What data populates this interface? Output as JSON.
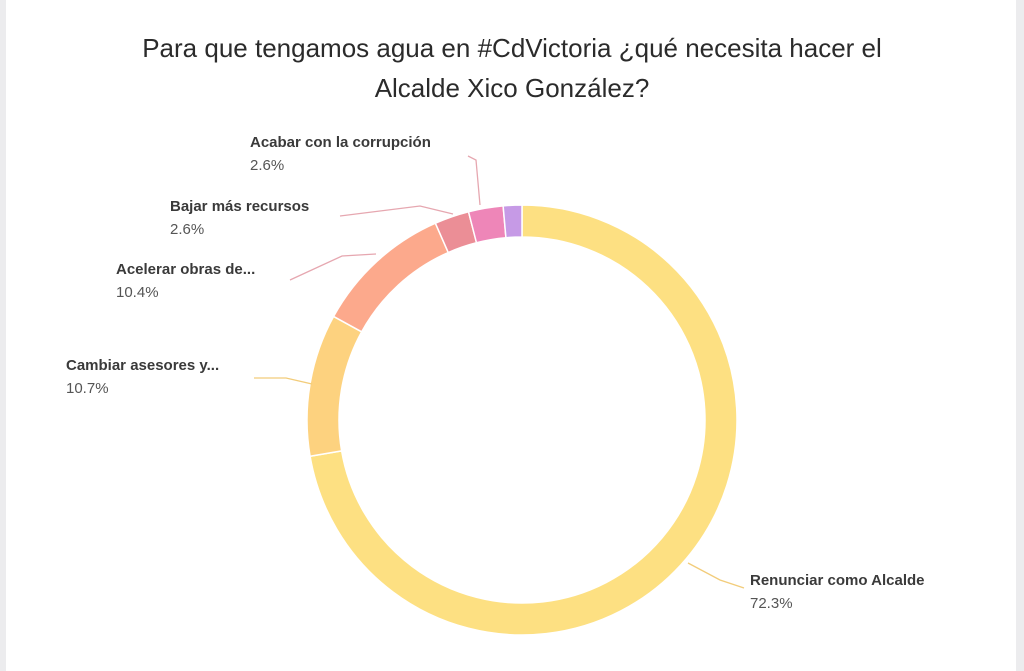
{
  "chart_data": {
    "type": "pie",
    "variant": "donut",
    "title_lines": [
      "Para que tengamos agua en #CdVictoria ¿qué necesita hacer el",
      "Alcalde Xico González?"
    ],
    "slices": [
      {
        "label": "Renunciar como Alcalde",
        "value": 72.3,
        "value_label": "72.3%",
        "color": "#fde082"
      },
      {
        "label": "Cambiar asesores y...",
        "value": 10.7,
        "value_label": "10.7%",
        "color": "#fdd27f"
      },
      {
        "label": "Acelerar obras de...",
        "value": 10.4,
        "value_label": "10.4%",
        "color": "#fca98c"
      },
      {
        "label": "Bajar más recursos",
        "value": 2.6,
        "value_label": "2.6%",
        "color": "#eb8e96"
      },
      {
        "label": "Acabar con la corrupción",
        "value": 2.6,
        "value_label": "2.6%",
        "color": "#ee86b8"
      },
      {
        "label": "",
        "value": 1.4,
        "value_label": "",
        "color": "#c69ae6"
      }
    ],
    "label_line_color": "#e6a7b0"
  }
}
